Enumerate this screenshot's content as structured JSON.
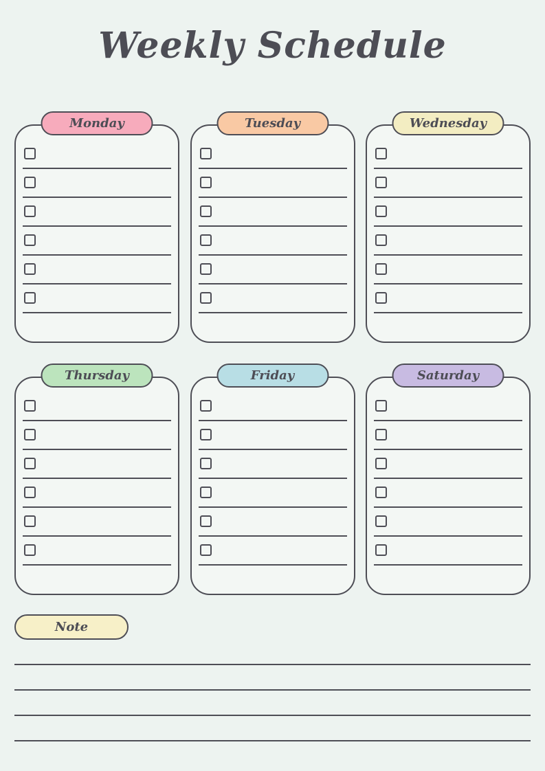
{
  "page": {
    "title": "Weekly Schedule",
    "background_color": "#edf3f0",
    "card_color": "#f3f7f4",
    "ink_color": "#4d4d55"
  },
  "days": [
    {
      "label": "Monday",
      "color": "#f7abbc",
      "slots": 6
    },
    {
      "label": "Tuesday",
      "color": "#f9c9a4",
      "slots": 6
    },
    {
      "label": "Wednesday",
      "color": "#f3edc2",
      "slots": 6
    },
    {
      "label": "Thursday",
      "color": "#bce4bd",
      "slots": 6
    },
    {
      "label": "Friday",
      "color": "#b8dee5",
      "slots": 6
    },
    {
      "label": "Saturday",
      "color": "#c8bbe2",
      "slots": 6
    }
  ],
  "note": {
    "label": "Note",
    "color": "#f7f0c8",
    "lines": 4
  }
}
